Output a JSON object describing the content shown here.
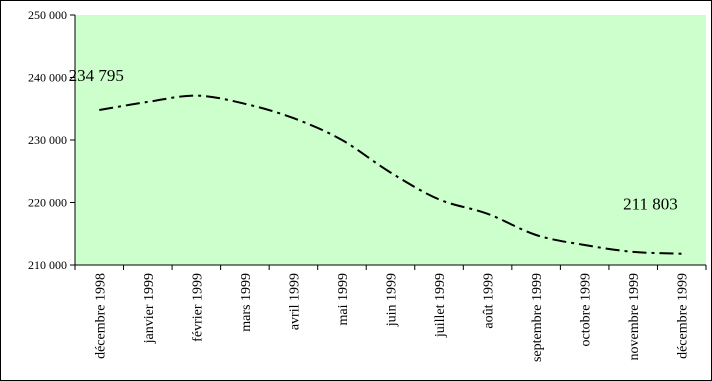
{
  "chart_data": {
    "type": "line",
    "title": "",
    "xlabel": "",
    "ylabel": "",
    "categories": [
      "décembre 1998",
      "janvier 1999",
      "février 1999",
      "mars 1999",
      "avril 1999",
      "mai 1999",
      "juin 1999",
      "juillet 1999",
      "août 1999",
      "septembre 1999",
      "octobre 1999",
      "novembre 1999",
      "décembre 1999"
    ],
    "series": [
      {
        "values": [
          234795,
          236100,
          237100,
          235800,
          233500,
          230000,
          224800,
          220500,
          218200,
          214800,
          213200,
          212100,
          211803
        ],
        "color": "#000000",
        "line_style": "dash-dot"
      }
    ],
    "ylim": [
      210000,
      250000
    ],
    "yticks": [
      210000,
      220000,
      230000,
      240000,
      250000
    ],
    "ytick_labels": [
      "210 000",
      "220 000",
      "230 000",
      "240 000",
      "250 000"
    ],
    "data_labels": [
      {
        "index": 0,
        "text": "234 795"
      },
      {
        "index": 12,
        "text": "211 803"
      }
    ],
    "plot_background": "#ccffcc",
    "grid": false,
    "legend": "none"
  }
}
